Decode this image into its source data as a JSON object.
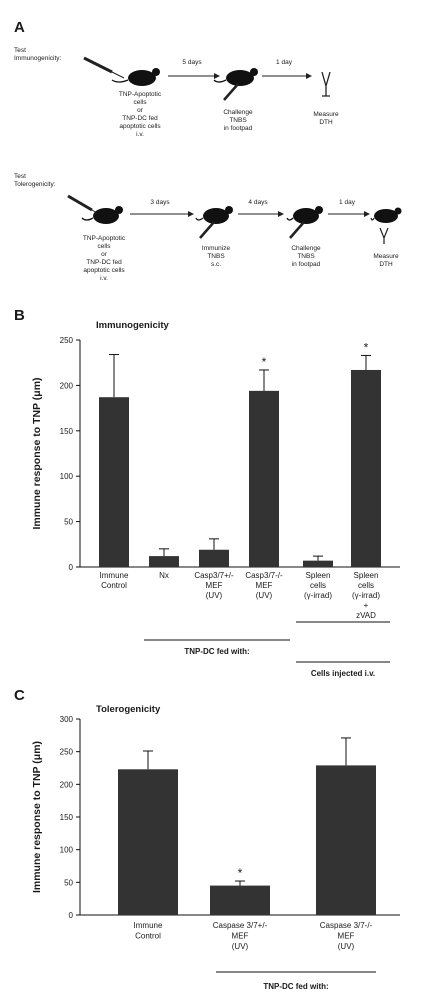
{
  "panels": {
    "a": "A",
    "b": "B",
    "c": "C"
  },
  "schematic": {
    "test_immunogenicity": [
      "Test",
      "Immunogenicity:"
    ],
    "test_tolerogenicity": [
      "Test",
      "Tolerogenicity:"
    ],
    "row1": {
      "inject_label": [
        "TNP-Apoptotic",
        "cells",
        "or",
        "TNP-DC fed",
        "apoptotic cells",
        "i.v."
      ],
      "arrow1": "5 days",
      "challenge": [
        "Challenge",
        "TNBS",
        "in footpad"
      ],
      "arrow2": "1 day",
      "measure": [
        "Measure",
        "DTH"
      ]
    },
    "row2": {
      "inject_label": [
        "TNP-Apoptotic",
        "cells",
        "or",
        "TNP-DC fed",
        "apoptotic cells",
        "i.v."
      ],
      "arrow1": "3 days",
      "immunize": [
        "Immunize",
        "TNBS",
        "s.c."
      ],
      "arrow2": "4 days",
      "challenge": [
        "Challenge",
        "TNBS",
        "in footpad"
      ],
      "arrow3": "1 day",
      "measure": [
        "Measure",
        "DTH"
      ]
    }
  },
  "group_labels": {
    "b_dc": "TNP-DC fed with:",
    "b_cells": "Cells injected i.v.",
    "c_dc": "TNP-DC fed with:"
  },
  "chart_data": [
    {
      "type": "bar",
      "title": "Immunogenicity",
      "ylabel": "Immune response to TNP (μm)",
      "ylim": [
        0,
        250
      ],
      "yticks": [
        0,
        50,
        100,
        150,
        200,
        250
      ],
      "categories": [
        [
          "Immune",
          "Control"
        ],
        [
          "Nx"
        ],
        [
          "Casp3/7+/-",
          "MEF",
          "(UV)"
        ],
        [
          "Casp3/7-/-",
          "MEF",
          "(UV)"
        ],
        [
          "Spleen",
          "cells",
          "(γ-irrad)"
        ],
        [
          "Spleen",
          "cells",
          "(γ-irrad)",
          "+",
          "zVAD"
        ]
      ],
      "values": [
        187,
        12,
        19,
        194,
        7,
        217
      ],
      "errors": [
        47,
        8,
        12,
        23,
        5,
        16
      ],
      "significance": [
        "",
        "",
        "",
        "*",
        "",
        "*"
      ],
      "bar_color": "#333333"
    },
    {
      "type": "bar",
      "title": "Tolerogenicity",
      "ylabel": "Immune response to TNP (μm)",
      "ylim": [
        0,
        300
      ],
      "yticks": [
        0,
        50,
        100,
        150,
        200,
        250,
        300
      ],
      "categories": [
        [
          "Immune",
          "Control"
        ],
        [
          "Caspase 3/7+/-",
          "MEF",
          "(UV)"
        ],
        [
          "Caspase 3/7-/-",
          "MEF",
          "(UV)"
        ]
      ],
      "values": [
        223,
        45,
        229
      ],
      "errors": [
        28,
        7,
        42
      ],
      "significance": [
        "",
        "*",
        ""
      ],
      "bar_color": "#333333"
    }
  ]
}
